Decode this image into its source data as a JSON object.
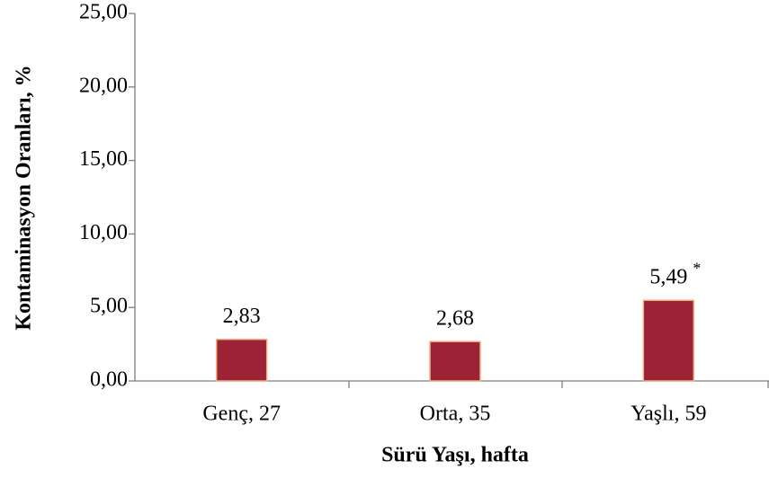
{
  "chart_data": {
    "type": "bar",
    "x_label": "Sürü Yaşı, hafta",
    "y_label": "Kontaminasyon Oranları, %",
    "categories": [
      "Genç, 27",
      "Orta, 35",
      "Yaşlı, 59"
    ],
    "values": [
      2.83,
      2.68,
      5.49
    ],
    "value_labels": [
      "2,83",
      "2,68",
      "5,49"
    ],
    "annotation": "*",
    "color": "#9b2335",
    "ylim": [
      0,
      25
    ],
    "yticks": [
      {
        "value": 0,
        "label": "0,00"
      },
      {
        "value": 5,
        "label": "5,00"
      },
      {
        "value": 10,
        "label": "10,00"
      },
      {
        "value": 15,
        "label": "15,00"
      },
      {
        "value": 20,
        "label": "20,00"
      },
      {
        "value": 25,
        "label": "25,00"
      }
    ]
  }
}
